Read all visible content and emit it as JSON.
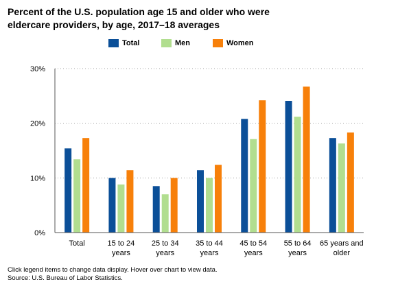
{
  "chart_data": {
    "type": "bar",
    "title": "Percent of the U.S. population age 15 and older who were eldercare providers, by age, 2017–18 averages",
    "categories": [
      [
        "Total"
      ],
      [
        "15 to 24",
        "years"
      ],
      [
        "25 to 34",
        "years"
      ],
      [
        "35 to 44",
        "years"
      ],
      [
        "45 to 54",
        "years"
      ],
      [
        "55 to 64",
        "years"
      ],
      [
        "65 years and",
        "older"
      ]
    ],
    "series": [
      {
        "name": "Total",
        "color": "#0b4f98",
        "values": [
          15.4,
          10.0,
          8.5,
          11.4,
          20.8,
          24.1,
          17.3
        ]
      },
      {
        "name": "Men",
        "color": "#b1de8f",
        "values": [
          13.4,
          8.8,
          7.0,
          10.0,
          17.1,
          21.2,
          16.3
        ]
      },
      {
        "name": "Women",
        "color": "#f7800a",
        "values": [
          17.3,
          11.4,
          10.0,
          12.4,
          24.2,
          26.7,
          18.3
        ]
      }
    ],
    "ylim": [
      0,
      30
    ],
    "yticks": [
      0,
      10,
      20,
      30
    ],
    "ytick_labels": [
      "0%",
      "10%",
      "20%",
      "30%"
    ],
    "grid": true,
    "legend_position": "top"
  },
  "footnote": {
    "line1": "Click legend items to change data display. Hover over chart to view data.",
    "line2": "Source: U.S. Bureau of Labor Statistics."
  }
}
